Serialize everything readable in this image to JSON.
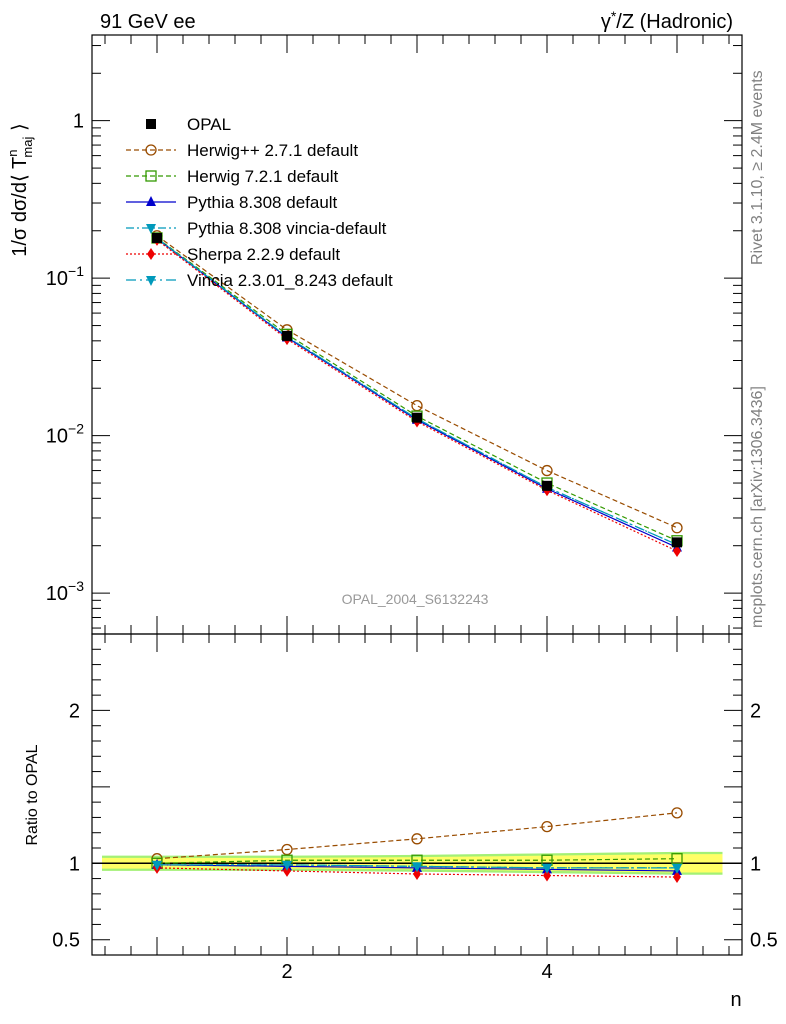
{
  "header": {
    "left": "91 GeV ee",
    "right_prefix": "γ",
    "right_sup": "*",
    "right_suffix": "/Z (Hadronic)"
  },
  "side_text": {
    "rivet": "Rivet 3.1.10, ≥ 2.4M events",
    "mcplots": "mcplots.cern.ch [arXiv:1306.3436]"
  },
  "watermark": "OPAL_2004_S6132243",
  "colors": {
    "data": "#000000",
    "herwigpp": "#994c00",
    "herwig7": "#339900",
    "pythia": "#0000cc",
    "vincia_default": "#0099bb",
    "sherpa": "#ee0000",
    "band_inner": "#ffff66",
    "band_outer": "#99ee66"
  },
  "chart_data": [
    {
      "type": "line",
      "panel": "main",
      "ylabel": "1/σ dσ/d⟨ T^n_maj ⟩",
      "yscale": "log",
      "ylim": [
        0.00055,
        3.5
      ],
      "xlim": [
        0.5,
        5.5
      ],
      "y_ticks": [
        "10^-3",
        "10^-2",
        "10^-1",
        "1"
      ],
      "x": [
        1,
        2,
        3,
        4,
        5
      ],
      "series": [
        {
          "name": "OPAL",
          "style": "data",
          "values": [
            0.18,
            0.043,
            0.013,
            0.0048,
            0.0021
          ]
        },
        {
          "name": "Herwig++ 2.7.1 default",
          "style": "herwigpp",
          "values": [
            0.186,
            0.047,
            0.0155,
            0.006,
            0.0026
          ]
        },
        {
          "name": "Herwig 7.2.1 default",
          "style": "herwig7",
          "values": [
            0.18,
            0.044,
            0.0133,
            0.005,
            0.00215
          ]
        },
        {
          "name": "Pythia 8.308 default",
          "style": "pythia",
          "values": [
            0.178,
            0.042,
            0.0126,
            0.0046,
            0.00195
          ]
        },
        {
          "name": "Pythia 8.308 vincia-default",
          "style": "pythia_vincia",
          "values": [
            0.179,
            0.0425,
            0.0128,
            0.0047,
            0.00203
          ]
        },
        {
          "name": "Sherpa 2.2.9 default",
          "style": "sherpa",
          "values": [
            0.175,
            0.041,
            0.0123,
            0.0045,
            0.00185
          ]
        },
        {
          "name": "Vincia 2.3.01_8.243 default",
          "style": "vincia",
          "values": [
            0.179,
            0.0425,
            0.0128,
            0.0047,
            0.00203
          ]
        }
      ]
    },
    {
      "type": "line",
      "panel": "ratio",
      "xlabel": "n",
      "ylabel": "Ratio to OPAL",
      "ylim": [
        0.4,
        2.5
      ],
      "y_ticks": [
        "0.5",
        "1",
        "2"
      ],
      "x_ticks": [
        "2",
        "4"
      ],
      "x": [
        1,
        2,
        3,
        4,
        5
      ],
      "band": {
        "inner": [
          0.035,
          0.035,
          0.04,
          0.05,
          0.06
        ],
        "outer": [
          0.05,
          0.05,
          0.055,
          0.065,
          0.075
        ]
      },
      "series": [
        {
          "name": "Herwig++ 2.7.1 default",
          "style": "herwigpp",
          "values": [
            1.03,
            1.09,
            1.16,
            1.24,
            1.33
          ]
        },
        {
          "name": "Herwig 7.2.1 default",
          "style": "herwig7",
          "values": [
            1.0,
            1.02,
            1.02,
            1.02,
            1.03
          ]
        },
        {
          "name": "Pythia 8.308 default",
          "style": "pythia",
          "values": [
            0.99,
            0.98,
            0.97,
            0.96,
            0.95
          ]
        },
        {
          "name": "Pythia 8.308 vincia-default",
          "style": "pythia_vincia",
          "values": [
            0.99,
            0.99,
            0.98,
            0.97,
            0.97
          ]
        },
        {
          "name": "Sherpa 2.2.9 default",
          "style": "sherpa",
          "values": [
            0.97,
            0.95,
            0.93,
            0.92,
            0.91
          ]
        },
        {
          "name": "Vincia 2.3.01_8.243 default",
          "style": "vincia",
          "values": [
            0.99,
            0.99,
            0.98,
            0.97,
            0.97
          ]
        }
      ]
    }
  ]
}
